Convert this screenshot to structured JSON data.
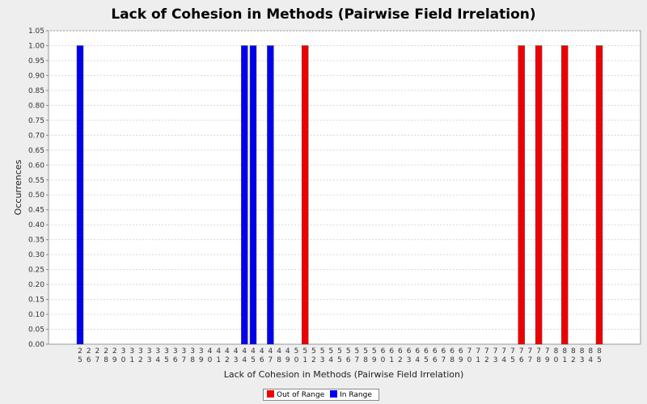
{
  "chart_data": {
    "type": "bar",
    "title": "Lack of Cohesion in Methods (Pairwise Field Irrelation)",
    "xlabel": "Lack of Cohesion in Methods (Pairwise Field Irrelation)",
    "ylabel": "Occurrences",
    "ylim": [
      0,
      1.05
    ],
    "y_ticks": [
      "0.00",
      "0.05",
      "0.10",
      "0.15",
      "0.20",
      "0.25",
      "0.30",
      "0.35",
      "0.40",
      "0.45",
      "0.50",
      "0.55",
      "0.60",
      "0.65",
      "0.70",
      "0.75",
      "0.80",
      "0.85",
      "0.90",
      "0.95",
      "1.00",
      "1.05"
    ],
    "grid": true,
    "legend_position": "bottom",
    "categories": [
      "25",
      "26",
      "27",
      "28",
      "29",
      "30",
      "31",
      "32",
      "33",
      "34",
      "35",
      "36",
      "37",
      "38",
      "39",
      "40",
      "41",
      "42",
      "43",
      "44",
      "45",
      "46",
      "47",
      "48",
      "49",
      "50",
      "51",
      "52",
      "53",
      "54",
      "55",
      "56",
      "57",
      "58",
      "59",
      "60",
      "61",
      "62",
      "63",
      "64",
      "65",
      "66",
      "67",
      "68",
      "69",
      "70",
      "71",
      "72",
      "73",
      "74",
      "75",
      "76",
      "77",
      "78",
      "79",
      "80",
      "81",
      "82",
      "83",
      "84",
      "85"
    ],
    "series": [
      {
        "name": "Out of Range",
        "color": "#ee0000",
        "values": [
          0,
          0,
          0,
          0,
          0,
          0,
          0,
          0,
          0,
          0,
          0,
          0,
          0,
          0,
          0,
          0,
          0,
          0,
          0,
          0,
          0,
          0,
          0,
          0,
          0,
          0,
          1,
          0,
          0,
          0,
          0,
          0,
          0,
          0,
          0,
          0,
          0,
          0,
          0,
          0,
          0,
          0,
          0,
          0,
          0,
          0,
          0,
          0,
          0,
          0,
          0,
          1,
          0,
          1,
          0,
          0,
          1,
          0,
          0,
          0,
          1
        ]
      },
      {
        "name": "In Range",
        "color": "#0000ee",
        "values": [
          1,
          0,
          0,
          0,
          0,
          0,
          0,
          0,
          0,
          0,
          0,
          0,
          0,
          0,
          0,
          0,
          0,
          0,
          0,
          1,
          1,
          0,
          1,
          0,
          0,
          0,
          0,
          0,
          0,
          0,
          0,
          0,
          0,
          0,
          0,
          0,
          0,
          0,
          0,
          0,
          0,
          0,
          0,
          0,
          0,
          0,
          0,
          0,
          0,
          0,
          0,
          0,
          0,
          0,
          0,
          0,
          0,
          0,
          0,
          0,
          0
        ]
      }
    ]
  }
}
